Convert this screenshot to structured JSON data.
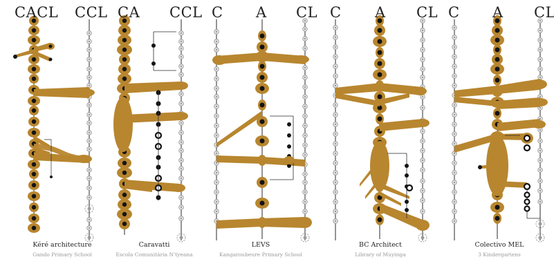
{
  "colors": {
    "gold": "#B8862F",
    "node": "#141414",
    "gray": "#9c9c9c",
    "line": "#2a2a2a"
  },
  "panels": [
    {
      "headers": [
        "CACL",
        "CCL"
      ],
      "title": "Kéré architecture",
      "subtitle": "Gando Primary School"
    },
    {
      "headers": [
        "CA",
        "CCL"
      ],
      "title": "Caravatti",
      "subtitle": "Escola Comunitária N'tyeana"
    },
    {
      "headers": [
        "C",
        "A",
        "CL"
      ],
      "title": "LEVS",
      "subtitle": "Kangaroubeure Primary School"
    },
    {
      "headers": [
        "C",
        "A",
        "CL"
      ],
      "title": "BC Architect",
      "subtitle": "Library of Muyinga"
    },
    {
      "headers": [
        "C",
        "A",
        "CL"
      ],
      "title": "Colectivo MEL",
      "subtitle": "3 Kindergartens"
    }
  ]
}
